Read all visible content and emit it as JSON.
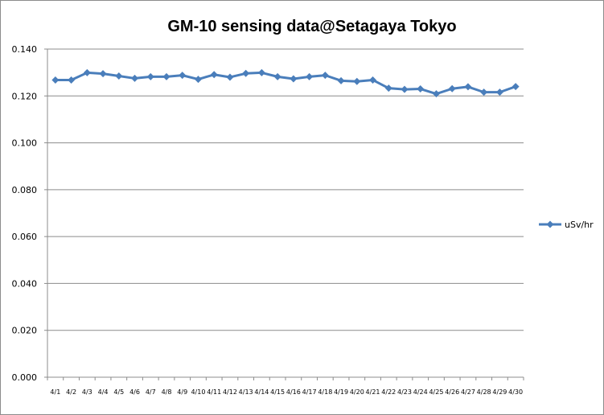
{
  "chart_data": {
    "type": "line",
    "title": "GM-10 sensing data@Setagaya Tokyo",
    "xlabel": "",
    "ylabel": "",
    "ylim": [
      0,
      0.14
    ],
    "yticks": [
      "0.000",
      "0.020",
      "0.040",
      "0.060",
      "0.080",
      "0.100",
      "0.120",
      "0.140"
    ],
    "grid": "horizontal",
    "legend_position": "right",
    "categories": [
      "4/1",
      "4/2",
      "4/3",
      "4/4",
      "4/5",
      "4/6",
      "4/7",
      "4/8",
      "4/9",
      "4/10",
      "4/11",
      "4/12",
      "4/13",
      "4/14",
      "4/15",
      "4/16",
      "4/17",
      "4/18",
      "4/19",
      "4/20",
      "4/21",
      "4/22",
      "4/23",
      "4/24",
      "4/25",
      "4/26",
      "4/27",
      "4/28",
      "4/29",
      "4/30"
    ],
    "series": [
      {
        "name": "uSv/hr",
        "color": "#4a7ebb",
        "marker": "diamond",
        "values": [
          0.1268,
          0.1268,
          0.1299,
          0.1295,
          0.1285,
          0.1275,
          0.1282,
          0.1282,
          0.1288,
          0.1271,
          0.1291,
          0.128,
          0.1296,
          0.1299,
          0.1282,
          0.1273,
          0.1282,
          0.1288,
          0.1265,
          0.1262,
          0.1268,
          0.1233,
          0.1228,
          0.123,
          0.1209,
          0.1231,
          0.1239,
          0.1216,
          0.1216,
          0.124
        ]
      }
    ]
  }
}
